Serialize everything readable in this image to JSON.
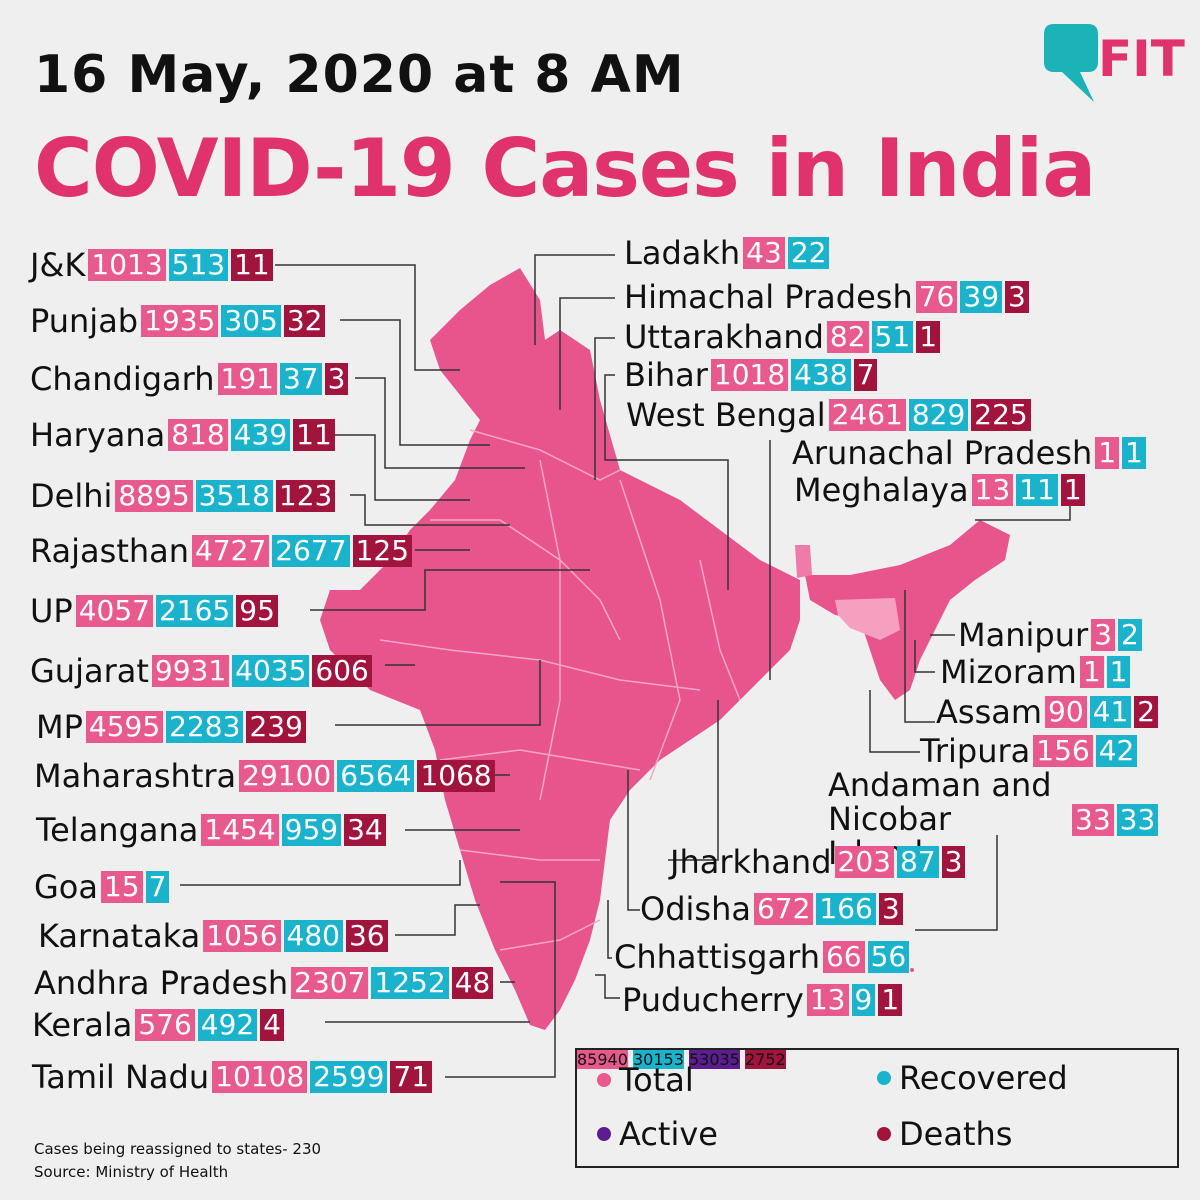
{
  "header": {
    "date": "16 May, 2020 at 8 AM",
    "title": "COVID-19 Cases in India",
    "logo": "FIT"
  },
  "colors": {
    "total": "#e85a8e",
    "recovered": "#1bb3cc",
    "deaths": "#a0143e",
    "active": "#5b1d8f",
    "title": "#e0336e",
    "map": "#e8558c"
  },
  "states": [
    {
      "name": "J&K",
      "total": "1013",
      "recovered": "513",
      "deaths": "11"
    },
    {
      "name": "Punjab",
      "total": "1935",
      "recovered": "305",
      "deaths": "32"
    },
    {
      "name": "Chandigarh",
      "total": "191",
      "recovered": "37",
      "deaths": "3"
    },
    {
      "name": "Haryana",
      "total": "818",
      "recovered": "439",
      "deaths": "11"
    },
    {
      "name": "Delhi",
      "total": "8895",
      "recovered": "3518",
      "deaths": "123"
    },
    {
      "name": "Rajasthan",
      "total": "4727",
      "recovered": "2677",
      "deaths": "125"
    },
    {
      "name": "UP",
      "total": "4057",
      "recovered": "2165",
      "deaths": "95"
    },
    {
      "name": "Gujarat",
      "total": "9931",
      "recovered": "4035",
      "deaths": "606"
    },
    {
      "name": "MP",
      "total": "4595",
      "recovered": "2283",
      "deaths": "239"
    },
    {
      "name": "Maharashtra",
      "total": "29100",
      "recovered": "6564",
      "deaths": "1068"
    },
    {
      "name": "Telangana",
      "total": "1454",
      "recovered": "959",
      "deaths": "34"
    },
    {
      "name": "Goa",
      "total": "15",
      "recovered": "7",
      "deaths": ""
    },
    {
      "name": "Karnataka",
      "total": "1056",
      "recovered": "480",
      "deaths": "36"
    },
    {
      "name": "Andhra Pradesh",
      "total": "2307",
      "recovered": "1252",
      "deaths": "48"
    },
    {
      "name": "Kerala",
      "total": "576",
      "recovered": "492",
      "deaths": "4"
    },
    {
      "name": "Tamil Nadu",
      "total": "10108",
      "recovered": "2599",
      "deaths": "71"
    },
    {
      "name": "Ladakh",
      "total": "43",
      "recovered": "22",
      "deaths": ""
    },
    {
      "name": "Himachal Pradesh",
      "total": "76",
      "recovered": "39",
      "deaths": "3"
    },
    {
      "name": "Uttarakhand",
      "total": "82",
      "recovered": "51",
      "deaths": "1"
    },
    {
      "name": "Bihar",
      "total": "1018",
      "recovered": "438",
      "deaths": "7"
    },
    {
      "name": "West Bengal",
      "total": "2461",
      "recovered": "829",
      "deaths": "225"
    },
    {
      "name": "Arunachal Pradesh",
      "total": "1",
      "recovered": "1",
      "deaths": ""
    },
    {
      "name": "Meghalaya",
      "total": "13",
      "recovered": "11",
      "deaths": "1"
    },
    {
      "name": "Manipur",
      "total": "3",
      "recovered": "2",
      "deaths": ""
    },
    {
      "name": "Mizoram",
      "total": "1",
      "recovered": "1",
      "deaths": ""
    },
    {
      "name": "Assam",
      "total": "90",
      "recovered": "41",
      "deaths": "2"
    },
    {
      "name": "Tripura",
      "total": "156",
      "recovered": "42",
      "deaths": ""
    },
    {
      "name": "Andaman and Nicobar Islands",
      "total": "33",
      "recovered": "33",
      "deaths": ""
    },
    {
      "name": "Jharkhand",
      "total": "203",
      "recovered": "87",
      "deaths": "3"
    },
    {
      "name": "Odisha",
      "total": "672",
      "recovered": "166",
      "deaths": "3"
    },
    {
      "name": "Chhattisgarh",
      "total": "66",
      "recovered": "56",
      "deaths": ""
    },
    {
      "name": "Puducherry",
      "total": "13",
      "recovered": "9",
      "deaths": "1"
    }
  ],
  "legend": {
    "total_label": "Total",
    "total_value": "85940",
    "recovered_label": "Recovered",
    "recovered_value": "30153",
    "active_label": "Active",
    "active_value": "53035",
    "deaths_label": "Deaths",
    "deaths_value": "2752"
  },
  "footer": {
    "note": "Cases being reassigned to states- 230",
    "source": "Source: Ministry of Health"
  }
}
